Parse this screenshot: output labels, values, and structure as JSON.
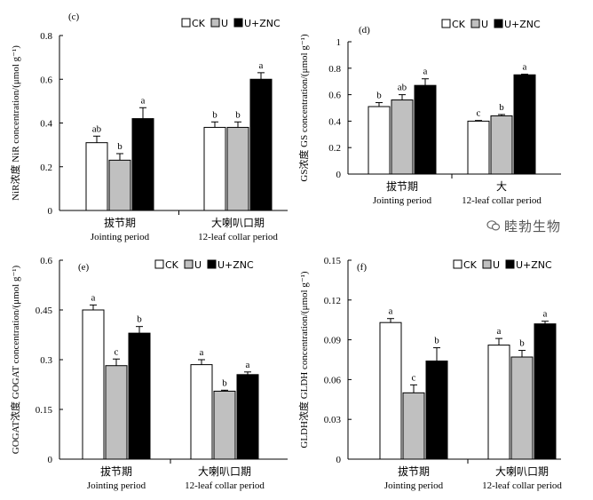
{
  "watermark": "睦勃生物",
  "chart_data": [
    {
      "type": "bar",
      "panel": "(c)",
      "ylabel": "NiR浓度  NiR concentration/(μmol g⁻¹)",
      "ylim": [
        0,
        0.8
      ],
      "yticks": [
        0,
        0.2,
        0.4,
        0.6,
        0.8
      ],
      "tick_labels": [
        "0",
        "0.2",
        "0.4",
        "0.6",
        "0.8"
      ],
      "categories": [
        {
          "cn": "拔节期",
          "en": "Jointing period"
        },
        {
          "cn": "大喇叭口期",
          "en": "12-leaf collar period"
        }
      ],
      "series": [
        {
          "name": "CK",
          "fill": "#ffffff",
          "values": [
            0.31,
            0.38
          ],
          "errors": [
            0.03,
            0.025
          ],
          "letters": [
            "ab",
            "b"
          ]
        },
        {
          "name": "U",
          "fill": "#c0c0c0",
          "values": [
            0.23,
            0.38
          ],
          "errors": [
            0.03,
            0.025
          ],
          "letters": [
            "b",
            "b"
          ]
        },
        {
          "name": "U+ZNC",
          "fill": "#000000",
          "values": [
            0.42,
            0.6
          ],
          "errors": [
            0.05,
            0.03
          ],
          "letters": [
            "a",
            "a"
          ]
        }
      ]
    },
    {
      "type": "bar",
      "panel": "(d)",
      "ylabel": "GS浓度  GS concentration/(μmol g⁻¹)",
      "ylim": [
        0,
        1
      ],
      "yticks": [
        0,
        0.2,
        0.4,
        0.6,
        0.8,
        1
      ],
      "tick_labels": [
        "0",
        "0.2",
        "0.4",
        "0.6",
        "0.8",
        "1"
      ],
      "categories": [
        {
          "cn": "拔节期",
          "en": "Jointing period"
        },
        {
          "cn": "大",
          "en": "12-leaf collar period"
        }
      ],
      "series": [
        {
          "name": "CK",
          "fill": "#ffffff",
          "values": [
            0.51,
            0.4
          ],
          "errors": [
            0.03,
            0.005
          ],
          "letters": [
            "b",
            "c"
          ]
        },
        {
          "name": "U",
          "fill": "#c0c0c0",
          "values": [
            0.56,
            0.44
          ],
          "errors": [
            0.04,
            0.01
          ],
          "letters": [
            "ab",
            "b"
          ]
        },
        {
          "name": "U+ZNC",
          "fill": "#000000",
          "values": [
            0.67,
            0.75
          ],
          "errors": [
            0.05,
            0.005
          ],
          "letters": [
            "a",
            "a"
          ]
        }
      ]
    },
    {
      "type": "bar",
      "panel": "(e)",
      "ylabel": "GOGAT浓度  GOGAT concentration/(μmol g⁻¹)",
      "ylim": [
        0,
        0.6
      ],
      "yticks": [
        0,
        0.15,
        0.3,
        0.45,
        0.6
      ],
      "tick_labels": [
        "0",
        "0.15",
        "0.3",
        "0.45",
        "0.6"
      ],
      "categories": [
        {
          "cn": "拔节期",
          "en": "Jointing period"
        },
        {
          "cn": "大喇叭口期",
          "en": "12-leaf collar period"
        }
      ],
      "series": [
        {
          "name": "CK",
          "fill": "#ffffff",
          "values": [
            0.45,
            0.285
          ],
          "errors": [
            0.015,
            0.015
          ],
          "letters": [
            "a",
            "a"
          ]
        },
        {
          "name": "U",
          "fill": "#c0c0c0",
          "values": [
            0.282,
            0.205
          ],
          "errors": [
            0.02,
            0.003
          ],
          "letters": [
            "c",
            "b"
          ]
        },
        {
          "name": "U+ZNC",
          "fill": "#000000",
          "values": [
            0.38,
            0.255
          ],
          "errors": [
            0.02,
            0.008
          ],
          "letters": [
            "b",
            "a"
          ]
        }
      ]
    },
    {
      "type": "bar",
      "panel": "(f)",
      "ylabel": "GLDH浓度  GLDH concentration/(μmol g⁻¹)",
      "ylim": [
        0,
        0.15
      ],
      "yticks": [
        0,
        0.03,
        0.06,
        0.09,
        0.12,
        0.15
      ],
      "tick_labels": [
        "0",
        "0.03",
        "0.06",
        "0.09",
        "0.12",
        "0.15"
      ],
      "categories": [
        {
          "cn": "拔节期",
          "en": "Jointing period"
        },
        {
          "cn": "大喇叭口期",
          "en": "12-leaf collar period"
        }
      ],
      "series": [
        {
          "name": "CK",
          "fill": "#ffffff",
          "values": [
            0.103,
            0.086
          ],
          "errors": [
            0.003,
            0.005
          ],
          "letters": [
            "a",
            "a"
          ]
        },
        {
          "name": "U",
          "fill": "#c0c0c0",
          "values": [
            0.05,
            0.077
          ],
          "errors": [
            0.006,
            0.005
          ],
          "letters": [
            "c",
            "b"
          ]
        },
        {
          "name": "U+ZNC",
          "fill": "#000000",
          "values": [
            0.074,
            0.102
          ],
          "errors": [
            0.01,
            0.002
          ],
          "letters": [
            "b",
            "a"
          ]
        }
      ]
    }
  ]
}
